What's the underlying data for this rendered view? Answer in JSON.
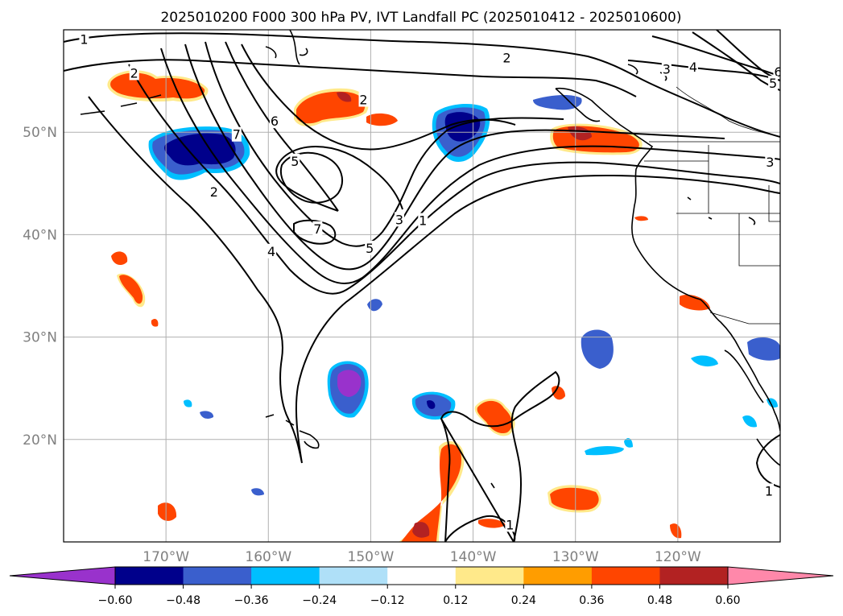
{
  "title": "2025010200 F000 300 hPa PV, IVT Landfall PC (2025010412 - 2025010600)",
  "map": {
    "lon_range": [
      -180,
      -110
    ],
    "lat_range": [
      10,
      60
    ],
    "lon_ticks": [
      {
        "lon": -170,
        "label": "170°W"
      },
      {
        "lon": -160,
        "label": "160°W"
      },
      {
        "lon": -150,
        "label": "150°W"
      },
      {
        "lon": -140,
        "label": "140°W"
      },
      {
        "lon": -130,
        "label": "130°W"
      },
      {
        "lon": -120,
        "label": "120°W"
      }
    ],
    "lat_ticks": [
      {
        "lat": 50,
        "label": "50°N"
      },
      {
        "lat": 40,
        "label": "40°N"
      },
      {
        "lat": 30,
        "label": "30°N"
      },
      {
        "lat": 20,
        "label": "20°N"
      }
    ],
    "contour_labels": [
      {
        "text": "1",
        "lon": -178.0,
        "lat": 59.1
      },
      {
        "text": "2",
        "lon": -173.1,
        "lat": 55.8
      },
      {
        "text": "2",
        "lon": -150.7,
        "lat": 53.2
      },
      {
        "text": "2",
        "lon": -136.7,
        "lat": 57.3
      },
      {
        "text": "3",
        "lon": -121.1,
        "lat": 56.2
      },
      {
        "text": "4",
        "lon": -118.5,
        "lat": 56.4
      },
      {
        "text": "6",
        "lon": -110.2,
        "lat": 55.9
      },
      {
        "text": "5",
        "lon": -110.7,
        "lat": 54.8
      },
      {
        "text": "6",
        "lon": -159.4,
        "lat": 51.1
      },
      {
        "text": "7",
        "lon": -163.1,
        "lat": 49.8
      },
      {
        "text": "2",
        "lon": -165.3,
        "lat": 44.2
      },
      {
        "text": "5",
        "lon": -157.4,
        "lat": 47.2
      },
      {
        "text": "7",
        "lon": -155.2,
        "lat": 40.6
      },
      {
        "text": "4",
        "lon": -159.7,
        "lat": 38.4
      },
      {
        "text": "5",
        "lon": -150.1,
        "lat": 38.7
      },
      {
        "text": "3",
        "lon": -147.2,
        "lat": 41.5
      },
      {
        "text": "1",
        "lon": -144.9,
        "lat": 41.4
      },
      {
        "text": "3",
        "lon": -111.0,
        "lat": 47.1
      },
      {
        "text": "1",
        "lon": -111.1,
        "lat": 15.0
      },
      {
        "text": "1",
        "lon": -136.4,
        "lat": 11.7
      }
    ]
  },
  "colorbar": {
    "ticks": [
      "−0.60",
      "−0.48",
      "−0.36",
      "−0.24",
      "−0.12",
      "0.12",
      "0.24",
      "0.36",
      "0.48",
      "0.60"
    ],
    "under_color": "#9932cc",
    "over_color": "#ff88aa",
    "bins": [
      "#00008b",
      "#3a5fcd",
      "#00bfff",
      "#afe0f8",
      "#ffffff",
      "#ffe98a",
      "#ff9d00",
      "#ff4500",
      "#b22222"
    ]
  },
  "legend_colors": {
    "neg_strong": "#00008b",
    "neg_mid": "#3a5fcd",
    "neg_weak": "#00bfff",
    "neg_light": "#afe0f8",
    "pos_light": "#ffe98a",
    "pos_weak": "#ff9d00",
    "pos_mid": "#ff4500",
    "pos_strong": "#b22222",
    "purple": "#9932cc"
  }
}
